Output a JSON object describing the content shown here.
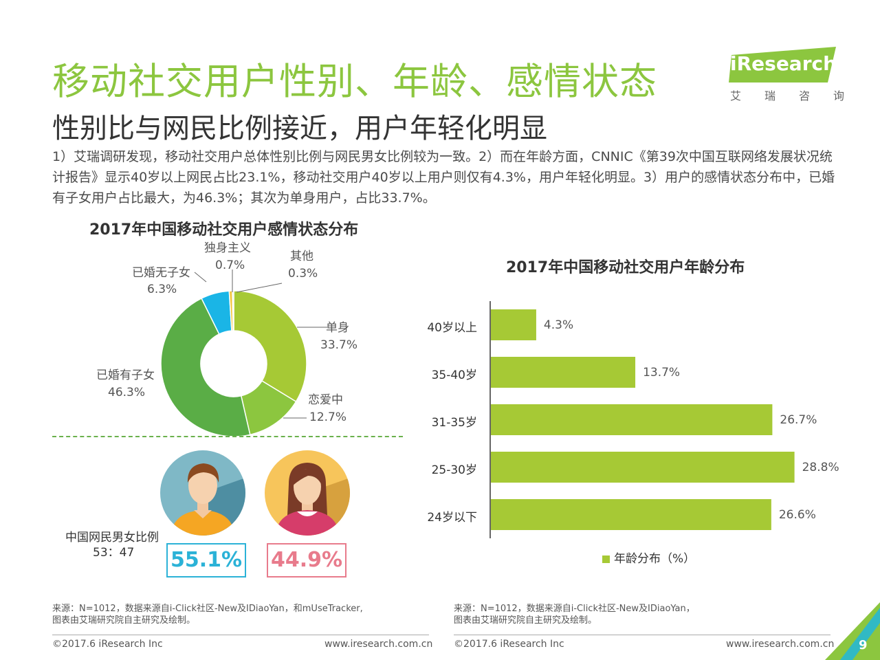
{
  "header": {
    "title": "移动社交用户性别、年龄、感情状态",
    "subtitle": "性别比与网民比例接近，用户年轻化明显",
    "description": "1）艾瑞调研发现，移动社交用户总体性别比例与网民男女比例较为一致。2）而在年龄方面，CNNIC《第39次中国互联网络发展状况统计报告》显示40岁以上网民占比23.1%，移动社交用户40岁以上用户则仅有4.3%，用户年轻化明显。3）用户的感情状态分布中，已婚有子女用户占比最大，为46.3%；其次为单身用户，占比33.7%。"
  },
  "logo": {
    "brand": "iResearch",
    "cn": "艾瑞咨询",
    "accent": "#8cc63f"
  },
  "chart_data": [
    {
      "type": "pie",
      "title": "2017年中国移动社交用户感情状态分布",
      "slices": [
        {
          "label": "单身",
          "value_label": "33.7%",
          "value": 33.7,
          "color": "#a6c935"
        },
        {
          "label": "恋爱中",
          "value_label": "12.7%",
          "value": 12.7,
          "color": "#8cc63f"
        },
        {
          "label": "已婚有子女",
          "value_label": "46.3%",
          "value": 46.3,
          "color": "#5aad46"
        },
        {
          "label": "已婚无子女",
          "value_label": "6.3%",
          "value": 6.3,
          "color": "#1ab5e6"
        },
        {
          "label": "独身主义",
          "value_label": "0.7%",
          "value": 0.7,
          "color": "#f2c53d"
        },
        {
          "label": "其他",
          "value_label": "0.3%",
          "value": 0.3,
          "color": "#c5e0b4"
        }
      ]
    },
    {
      "type": "bar",
      "orientation": "horizontal",
      "title": "2017年中国移动社交用户年龄分布",
      "categories": [
        "40岁以上",
        "35-40岁",
        "31-35岁",
        "25-30岁",
        "24岁以下"
      ],
      "series": [
        {
          "name": "年龄分布（%）",
          "values": [
            4.3,
            13.7,
            26.7,
            28.8,
            26.6
          ],
          "value_labels": [
            "4.3%",
            "13.7%",
            "26.7%",
            "28.8%",
            "26.6%"
          ],
          "color": "#a6c935"
        }
      ],
      "xlim": [
        0,
        30
      ],
      "legend": "bottom"
    }
  ],
  "gender": {
    "male_pct": "55.1%",
    "female_pct": "44.9%",
    "male_color": "#2bb2d7",
    "female_color": "#e87b8c",
    "ratio_label": "中国网民男女比例",
    "ratio_value": "53：47"
  },
  "footer": {
    "source_left": "来源：N=1012，数据来源自i-Click社区-New及IDiaoYan，和mUseTracker,\n图表由艾瑞研究院自主研究及绘制。",
    "source_right": "来源：N=1012，数据来源自i-Click社区-New及IDiaoYan，\n图表由艾瑞研究院自主研究及绘制。",
    "copyright": "©2017.6 iResearch Inc",
    "url": "www.iresearch.com.cn",
    "page": "9"
  }
}
